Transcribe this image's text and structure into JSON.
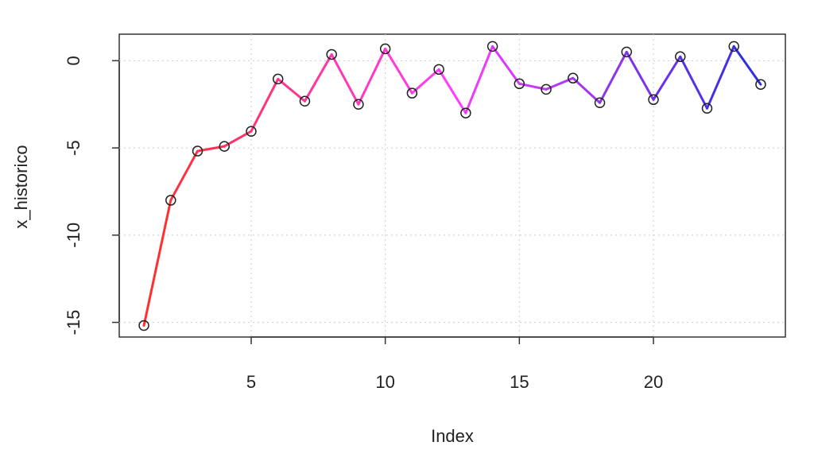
{
  "chart_data": {
    "type": "line",
    "x": [
      1,
      2,
      3,
      4,
      5,
      6,
      7,
      8,
      9,
      10,
      11,
      12,
      13,
      14,
      15,
      16,
      17,
      18,
      19,
      20,
      21,
      22,
      23,
      24
    ],
    "values": [
      -15.18,
      -8.0,
      -5.18,
      -4.91,
      -4.05,
      -1.05,
      -2.32,
      0.36,
      -2.5,
      0.68,
      -1.86,
      -0.5,
      -3.0,
      0.82,
      -1.32,
      -1.64,
      -1.0,
      -2.41,
      0.5,
      -2.23,
      0.23,
      -2.73,
      0.82,
      -1.36
    ],
    "colors": [
      "#ff3030",
      "#ff3cff",
      "#3030e0"
    ],
    "marker_color": "#222222",
    "xlabel": "Index",
    "ylabel": "x_historico",
    "xlim": [
      0.08,
      24.92
    ],
    "ylim": [
      -15.84,
      1.52
    ],
    "xticks": [
      5,
      10,
      15,
      20
    ],
    "yticks": [
      -15,
      -10,
      -5,
      0
    ],
    "grid": true
  }
}
